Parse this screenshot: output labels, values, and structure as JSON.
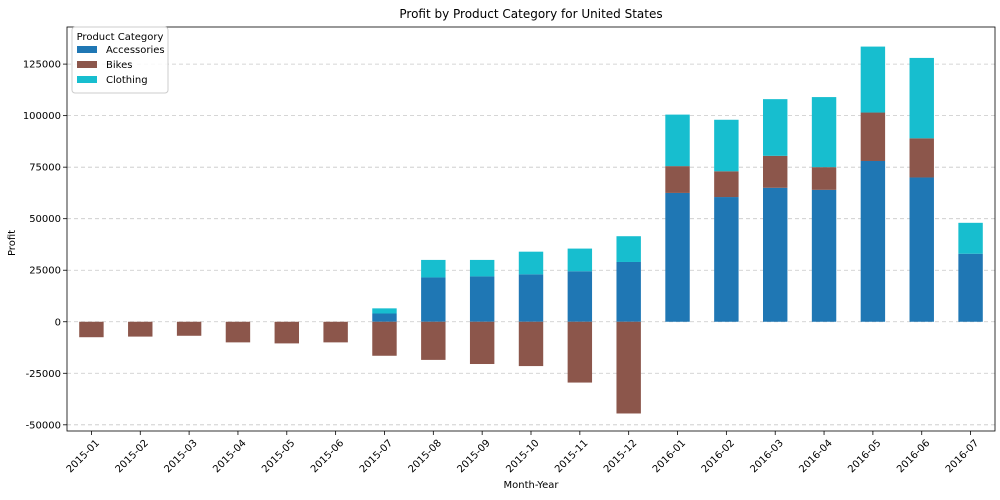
{
  "colors": {
    "Accessories": "#1f77b4",
    "Bikes": "#8c564b",
    "Clothing": "#17becf",
    "grid": "#c8c8c8"
  },
  "chart_data": {
    "type": "bar",
    "stacked": true,
    "title": "Profit by Product Category for United States",
    "xlabel": "Month-Year",
    "ylabel": "Profit",
    "legend_title": "Product Category",
    "legend_position": "top-left",
    "grid": "y-dashed",
    "ylim": [
      -53000,
      143000
    ],
    "yticks": [
      -50000,
      -25000,
      0,
      25000,
      50000,
      75000,
      100000,
      125000
    ],
    "categories": [
      "2015-01",
      "2015-02",
      "2015-03",
      "2015-04",
      "2015-05",
      "2015-06",
      "2015-07",
      "2015-08",
      "2015-09",
      "2015-10",
      "2015-11",
      "2015-12",
      "2016-01",
      "2016-02",
      "2016-03",
      "2016-04",
      "2016-05",
      "2016-06",
      "2016-07"
    ],
    "series": [
      {
        "name": "Accessories",
        "values": [
          0,
          0,
          0,
          0,
          0,
          0,
          4000,
          21500,
          22000,
          23000,
          24500,
          29000,
          62500,
          60500,
          65000,
          64000,
          78000,
          70000,
          33000
        ]
      },
      {
        "name": "Bikes",
        "values": [
          -7500,
          -7200,
          -6800,
          -10000,
          -10500,
          -10000,
          -16500,
          -18500,
          -20500,
          -21500,
          -29500,
          -44500,
          13000,
          12500,
          15500,
          11000,
          23500,
          19000,
          0
        ]
      },
      {
        "name": "Clothing",
        "values": [
          0,
          0,
          0,
          0,
          0,
          0,
          2500,
          8500,
          8000,
          11000,
          11000,
          12500,
          25000,
          25000,
          27500,
          34000,
          32000,
          39000,
          15000
        ]
      }
    ]
  }
}
